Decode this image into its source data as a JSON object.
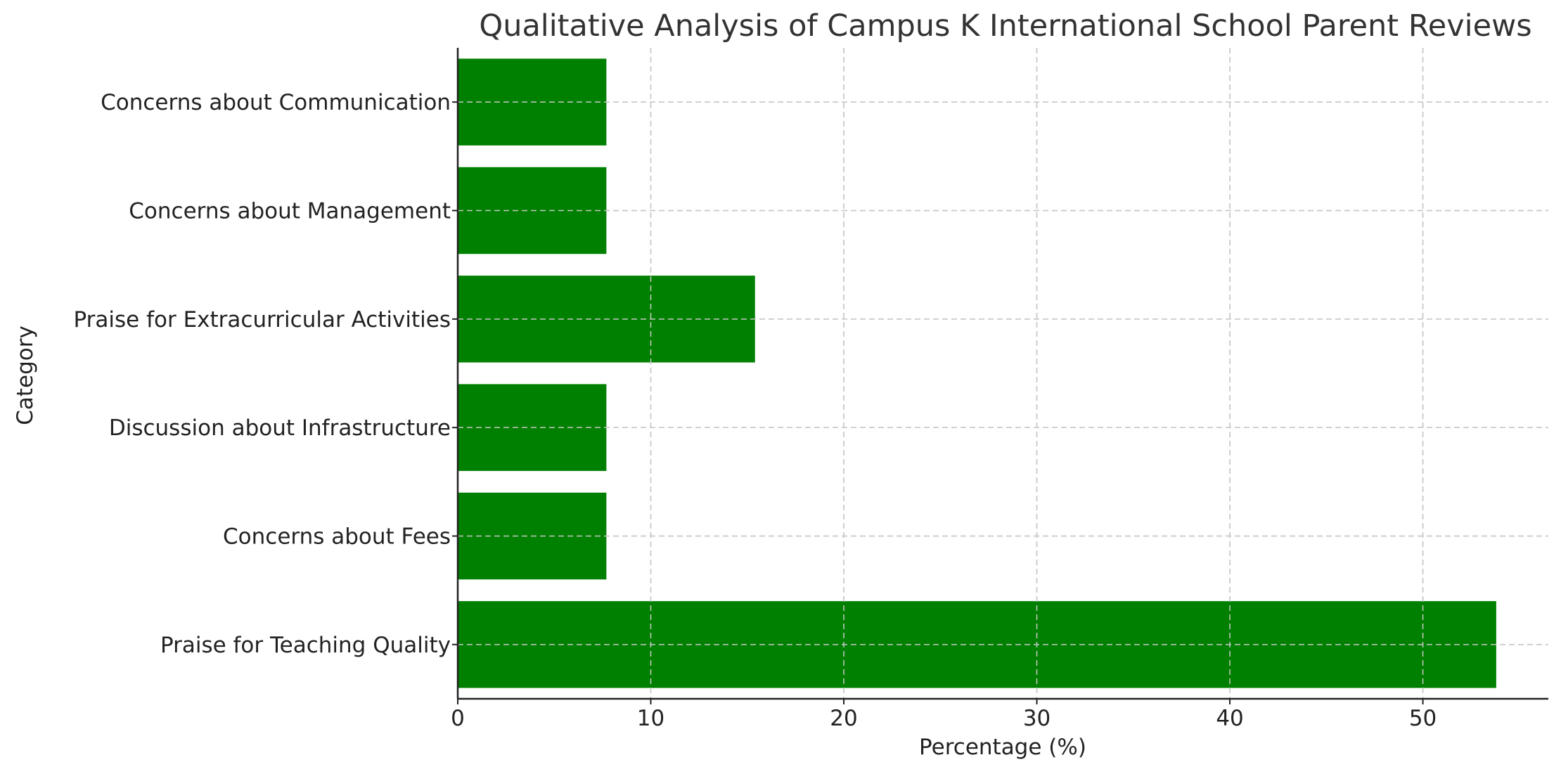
{
  "chart_data": {
    "type": "bar",
    "orientation": "horizontal",
    "title": "Qualitative Analysis of Campus K International School Parent Reviews",
    "xlabel": "Percentage (%)",
    "ylabel": "Category",
    "categories": [
      "Praise for Teaching Quality",
      "Concerns about Fees",
      "Discussion about Infrastructure",
      "Praise for Extracurricular Activities",
      "Concerns about Management",
      "Concerns about Communication"
    ],
    "values": [
      53.8,
      7.7,
      7.7,
      15.4,
      7.7,
      7.7
    ],
    "xlim": [
      0,
      56.5
    ],
    "xticks": [
      0,
      10,
      20,
      30,
      40,
      50
    ],
    "grid": true,
    "bar_color": "#008000",
    "grid_color": "#c8c8c8"
  }
}
